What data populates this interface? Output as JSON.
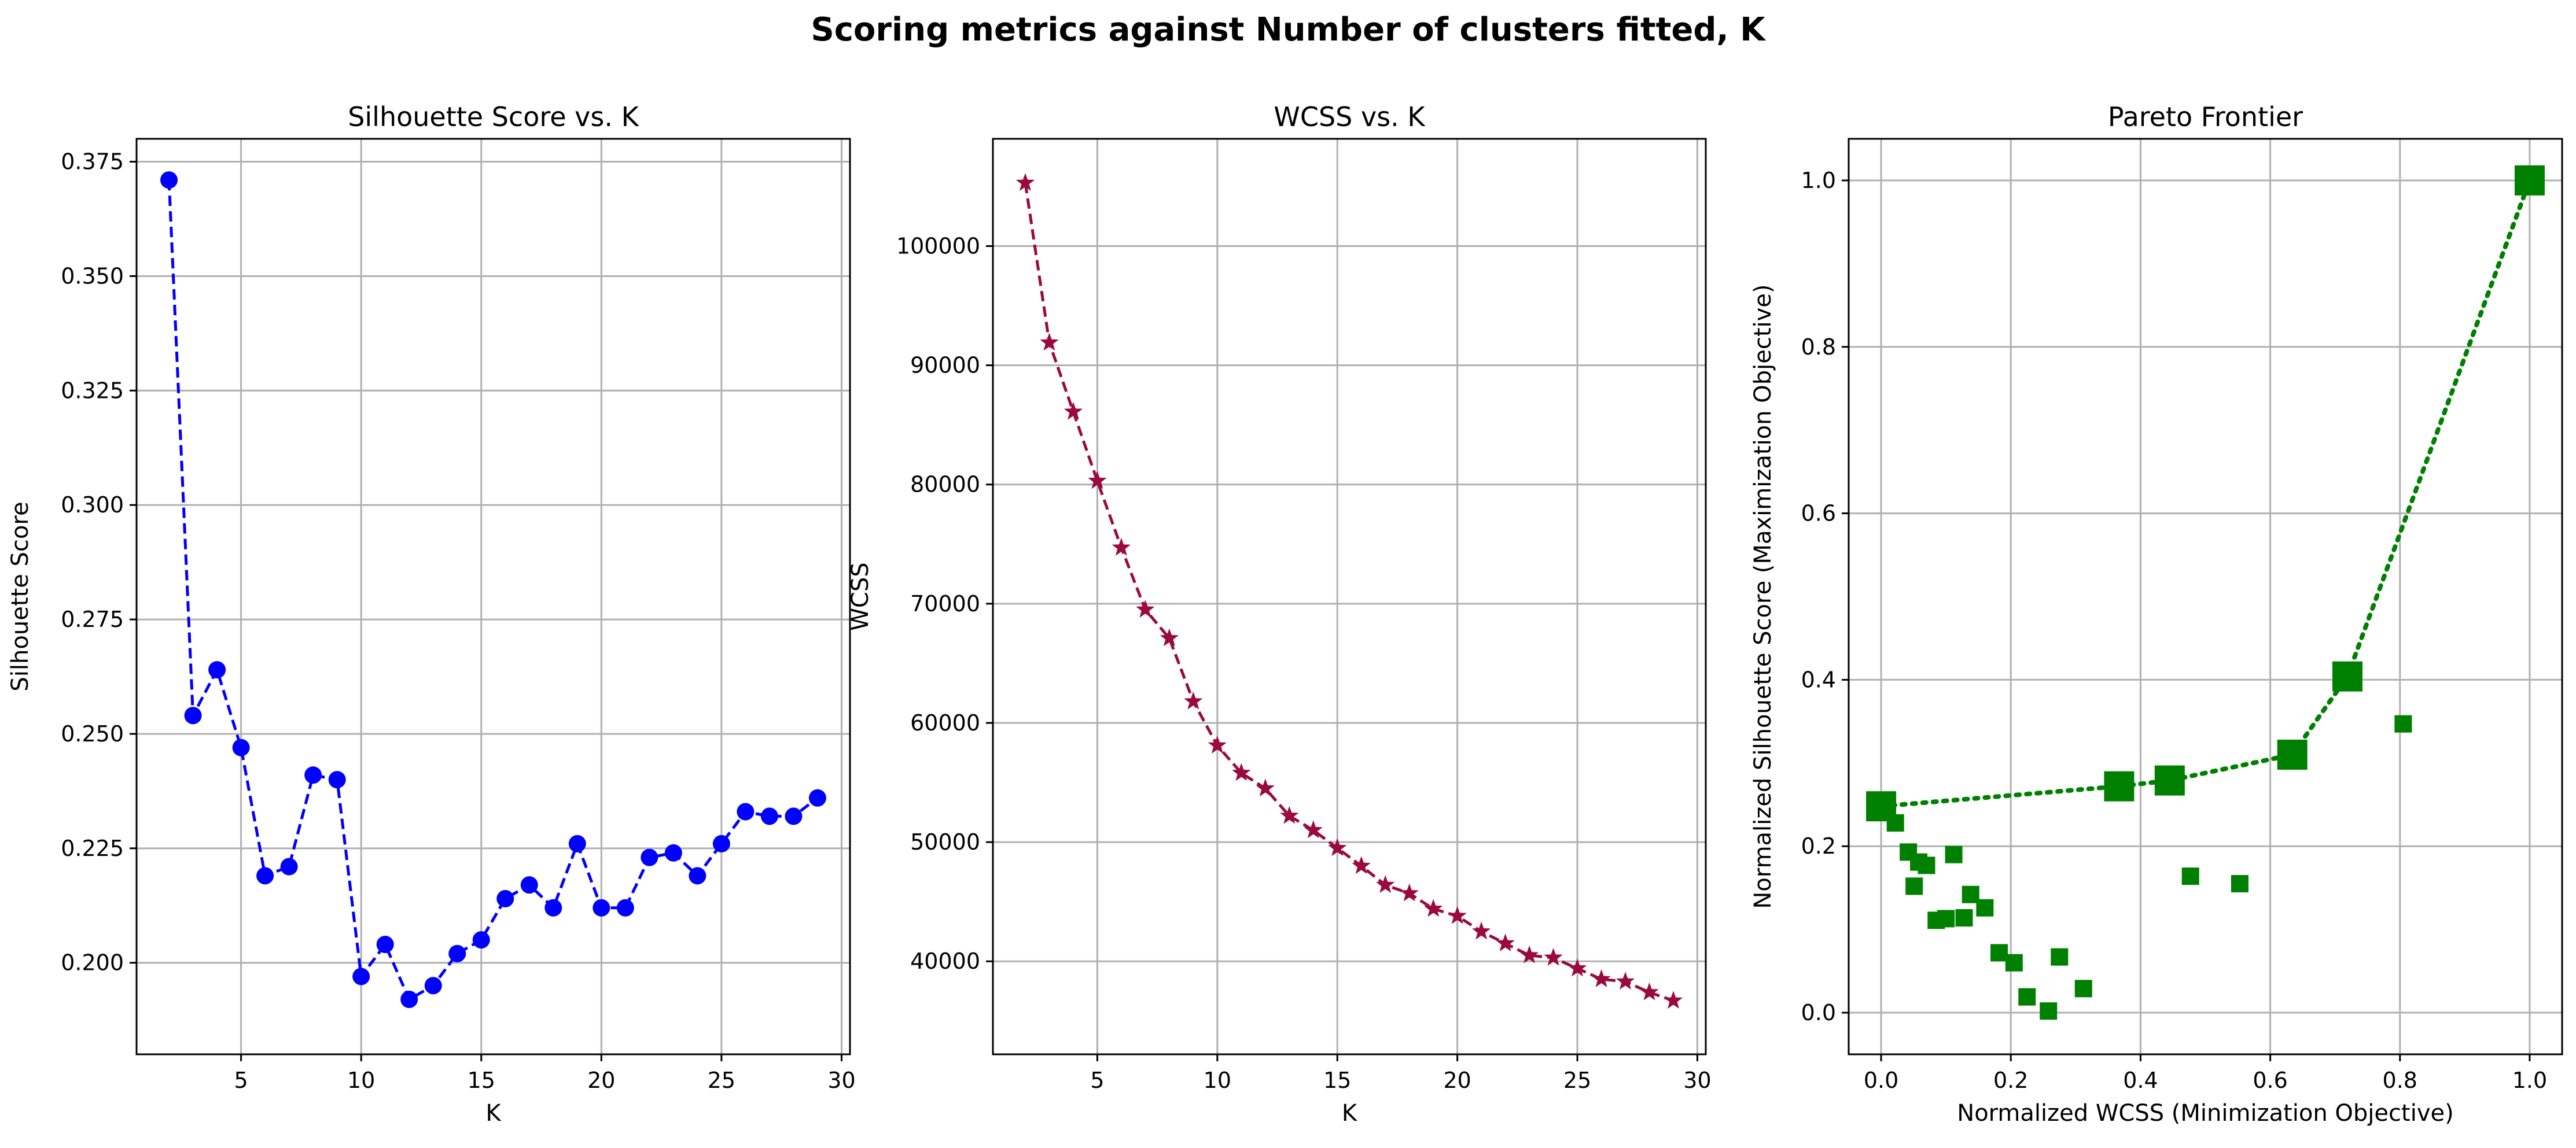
{
  "figure": {
    "suptitle": "Scoring metrics against Number of clusters fitted, K"
  },
  "chart_data": [
    {
      "type": "line",
      "title": "Silhouette Score vs. K",
      "xlabel": "K",
      "ylabel": "Silhouette Score",
      "xlim": [
        0.65,
        30.35
      ],
      "ylim": [
        0.18,
        0.38
      ],
      "xticks": [
        5,
        10,
        15,
        20,
        25,
        30
      ],
      "yticks": [
        0.2,
        0.225,
        0.25,
        0.275,
        0.3,
        0.325,
        0.35,
        0.375
      ],
      "ytick_format": 3,
      "grid": true,
      "color": "#0000ff",
      "linestyle": "dashed",
      "marker": "circle",
      "series": [
        {
          "x": [
            2,
            3,
            4,
            5,
            6,
            7,
            8,
            9,
            10,
            11,
            12,
            13,
            14,
            15,
            16,
            17,
            18,
            19,
            20,
            21,
            22,
            23,
            24,
            25,
            26,
            27,
            28,
            29
          ],
          "values": [
            0.371,
            0.254,
            0.264,
            0.247,
            0.219,
            0.221,
            0.241,
            0.24,
            0.197,
            0.204,
            0.192,
            0.195,
            0.202,
            0.205,
            0.214,
            0.217,
            0.212,
            0.226,
            0.212,
            0.212,
            0.223,
            0.224,
            0.219,
            0.226,
            0.233,
            0.232,
            0.232,
            0.236
          ]
        }
      ]
    },
    {
      "type": "line",
      "title": "WCSS vs. K",
      "xlabel": "K",
      "ylabel": "WCSS",
      "xlim": [
        0.65,
        30.35
      ],
      "ylim": [
        32200,
        109000
      ],
      "xticks": [
        5,
        10,
        15,
        20,
        25,
        30
      ],
      "yticks": [
        40000,
        50000,
        60000,
        70000,
        80000,
        90000,
        100000
      ],
      "ytick_format": 0,
      "grid": true,
      "color": "#9b0a3f",
      "linestyle": "dashed",
      "marker": "star",
      "series": [
        {
          "x": [
            2,
            3,
            4,
            5,
            6,
            7,
            8,
            9,
            10,
            11,
            12,
            13,
            14,
            15,
            16,
            17,
            18,
            19,
            20,
            21,
            22,
            23,
            24,
            25,
            26,
            27,
            28,
            29
          ],
          "values": [
            105300,
            91900,
            86100,
            80300,
            74700,
            69500,
            67100,
            61800,
            58100,
            55800,
            54500,
            52200,
            51000,
            49500,
            48000,
            46400,
            45700,
            44400,
            43800,
            42500,
            41500,
            40500,
            40300,
            39400,
            38500,
            38300,
            37400,
            36700
          ]
        }
      ]
    },
    {
      "type": "scatter",
      "title": "Pareto Frontier",
      "xlabel": "Normalized WCSS (Minimization Objective)",
      "ylabel": "Normalized Silhouette Score (Maximization Objective)",
      "xlim": [
        -0.05,
        1.05
      ],
      "ylim": [
        -0.05,
        1.05
      ],
      "xticks": [
        0.0,
        0.2,
        0.4,
        0.6,
        0.8,
        1.0
      ],
      "yticks": [
        0.0,
        0.2,
        0.4,
        0.6,
        0.8,
        1.0
      ],
      "ytick_format": 1,
      "grid": true,
      "color": "#008000",
      "marker": "square",
      "series": [
        {
          "name": "",
          "x": [
            0.022,
            0.042,
            0.051,
            0.058,
            0.07,
            0.085,
            0.1,
            0.112,
            0.128,
            0.138,
            0.16,
            0.182,
            0.205,
            0.225,
            0.258,
            0.275,
            0.312,
            0.477,
            0.553,
            0.805
          ],
          "values": [
            0.228,
            0.193,
            0.152,
            0.181,
            0.177,
            0.111,
            0.113,
            0.19,
            0.114,
            0.142,
            0.126,
            0.072,
            0.06,
            0.019,
            0.002,
            0.067,
            0.029,
            0.164,
            0.155,
            0.347
          ]
        },
        {
          "name": "",
          "line": "dotted",
          "x": [
            0.0,
            0.367,
            0.445,
            0.634,
            0.719,
            1.0
          ],
          "values": [
            0.248,
            0.272,
            0.279,
            0.31,
            0.404,
            1.0
          ]
        }
      ]
    }
  ]
}
